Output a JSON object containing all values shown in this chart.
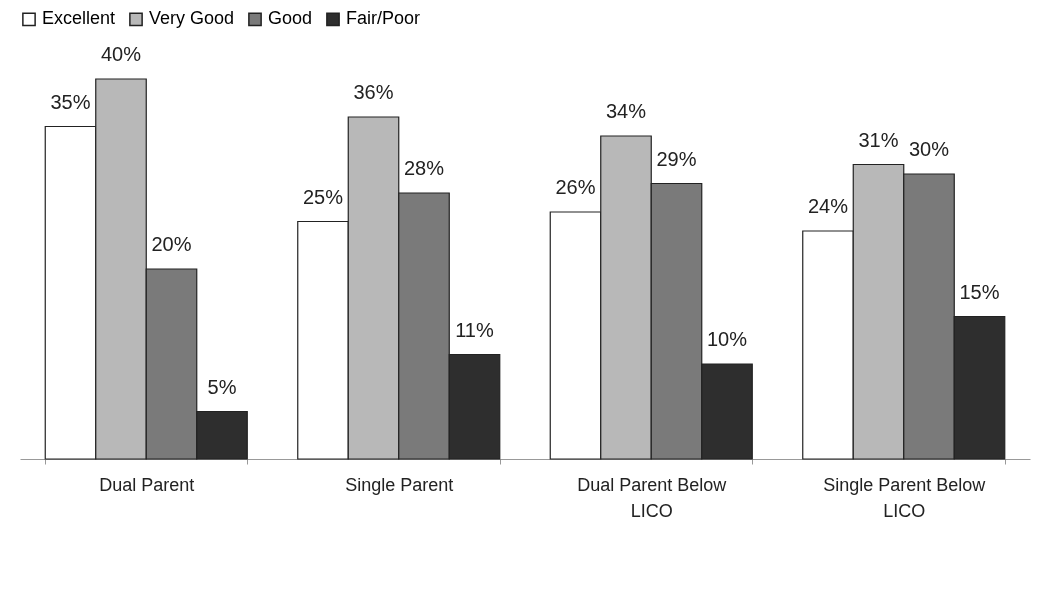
{
  "chart_data": {
    "type": "bar",
    "categories": [
      "Dual Parent",
      "Single Parent",
      "Dual Parent Below LICO",
      "Single Parent Below LICO"
    ],
    "series": [
      {
        "name": "Excellent",
        "color": "#ffffff",
        "values": [
          35,
          25,
          26,
          24
        ],
        "value_labels": [
          "35%",
          "25%",
          "26%",
          "24%"
        ]
      },
      {
        "name": "Very Good",
        "color": "#b8b8b8",
        "values": [
          40,
          36,
          34,
          31
        ],
        "value_labels": [
          "40%",
          "36%",
          "34%",
          "31%"
        ]
      },
      {
        "name": "Good",
        "color": "#7a7a7a",
        "values": [
          20,
          28,
          29,
          30
        ],
        "value_labels": [
          "20%",
          "28%",
          "29%",
          "30%"
        ]
      },
      {
        "name": "Fair/Poor",
        "color": "#2e2e2e",
        "values": [
          5,
          11,
          10,
          15
        ],
        "value_labels": [
          "5%",
          "11%",
          "10%",
          "15%"
        ]
      }
    ],
    "legend": "top",
    "grid": false
  }
}
